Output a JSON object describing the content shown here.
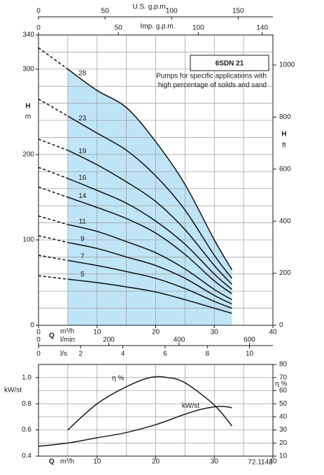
{
  "chart_data": [
    {
      "type": "line",
      "title": "6SDN 21",
      "subtitle": [
        "Pumps for specific applications with",
        "high percentage of solids and sand"
      ],
      "x_label": "Q",
      "x_unit": "m³/h",
      "y_label": "H",
      "y_unit": "m",
      "y2_label": "H",
      "y2_unit": "ft",
      "x": [
        0,
        5,
        10,
        15,
        20,
        25,
        30,
        33
      ],
      "series": [
        {
          "name": "28",
          "color": "#1a1a1a",
          "values": [
            325,
            300,
            275,
            255,
            215,
            165,
            100,
            65
          ]
        },
        {
          "name": "23",
          "color": "#1a1a1a",
          "values": [
            265,
            245,
            225,
            205,
            175,
            135,
            82,
            55
          ]
        },
        {
          "name": "19",
          "color": "#1a1a1a",
          "values": [
            218,
            205,
            188,
            168,
            145,
            112,
            70,
            48
          ]
        },
        {
          "name": "16",
          "color": "#1a1a1a",
          "values": [
            185,
            172,
            158,
            143,
            122,
            95,
            60,
            42
          ]
        },
        {
          "name": "14",
          "color": "#1a1a1a",
          "values": [
            162,
            150,
            138,
            125,
            108,
            83,
            52,
            37
          ]
        },
        {
          "name": "11",
          "color": "#1a1a1a",
          "values": [
            128,
            118,
            110,
            98,
            85,
            66,
            42,
            30
          ]
        },
        {
          "name": "9",
          "color": "#1a1a1a",
          "values": [
            105,
            97,
            90,
            80,
            70,
            55,
            35,
            25
          ]
        },
        {
          "name": "7",
          "color": "#1a1a1a",
          "values": [
            82,
            76,
            70,
            63,
            55,
            43,
            28,
            20
          ]
        },
        {
          "name": "5",
          "color": "#1a1a1a",
          "values": [
            58,
            54,
            50,
            45,
            39,
            30,
            20,
            14
          ]
        }
      ],
      "shaded_range": [
        5,
        33
      ],
      "shade_color": "#bfe4f6",
      "xlim": [
        0,
        40
      ],
      "xticks": [
        0,
        10,
        20,
        30,
        40
      ],
      "ylim": [
        0,
        340
      ],
      "yticks": [
        0,
        100,
        200,
        300,
        340
      ],
      "y2lim": [
        0,
        1115.5
      ],
      "y2ticks": [
        0,
        200,
        400,
        600,
        800,
        1000
      ],
      "xgrid": [
        0,
        5,
        10,
        15,
        20,
        25,
        30,
        35,
        40
      ],
      "ygrid": [
        20,
        40,
        60,
        80,
        100,
        120,
        140,
        160,
        180,
        200,
        220,
        240,
        260,
        280,
        300,
        320
      ],
      "top_axes": [
        {
          "label": "U.S. g.p.m.",
          "lim": [
            0,
            176.1
          ],
          "ticks": [
            0,
            50,
            100,
            150
          ]
        },
        {
          "label": "Imp. g.p.m.",
          "lim": [
            0,
            146.7
          ],
          "ticks": [
            0,
            50,
            100,
            140
          ]
        }
      ],
      "bottom_axes": [
        {
          "label": "l/min",
          "lim": [
            0,
            666.7
          ],
          "ticks": [
            0,
            200,
            400,
            600
          ]
        },
        {
          "label": "l/s",
          "lim": [
            0,
            11.11
          ],
          "ticks": [
            0,
            2,
            4,
            6,
            8,
            10
          ]
        }
      ]
    },
    {
      "type": "line",
      "x_label": "Q",
      "x_unit": "m³/h",
      "y_label": "kW/st",
      "y2_label": "η %",
      "series": [
        {
          "name": "η %",
          "color": "#1a1a1a",
          "axis": "y2",
          "x": [
            5,
            10,
            15,
            19,
            22,
            25,
            30,
            33
          ],
          "values": [
            30,
            50,
            63,
            70,
            70,
            66,
            49,
            33
          ]
        },
        {
          "name": "kW/st",
          "color": "#1a1a1a",
          "x": [
            0,
            5,
            10,
            15,
            20,
            25,
            28,
            31,
            33
          ],
          "values": [
            0.475,
            0.5,
            0.54,
            0.58,
            0.64,
            0.72,
            0.76,
            0.78,
            0.77
          ]
        }
      ],
      "xlim": [
        0,
        40
      ],
      "xticks": [
        10,
        20,
        30,
        40
      ],
      "ylim": [
        0.4,
        1.1
      ],
      "yticks": [
        0.4,
        0.6,
        0.8,
        {
          "value": 1,
          "label": "1.0"
        }
      ],
      "y2lim": [
        10,
        80
      ],
      "y2ticks": [
        10,
        20,
        30,
        40,
        50,
        60,
        70,
        80
      ],
      "xgrid": [
        0,
        5,
        10,
        15,
        20,
        25,
        30,
        35,
        40
      ],
      "ygrid": [
        0.4,
        0.5,
        0.6,
        0.7,
        0.8,
        0.9,
        1.0
      ],
      "code": "72.1142"
    }
  ]
}
